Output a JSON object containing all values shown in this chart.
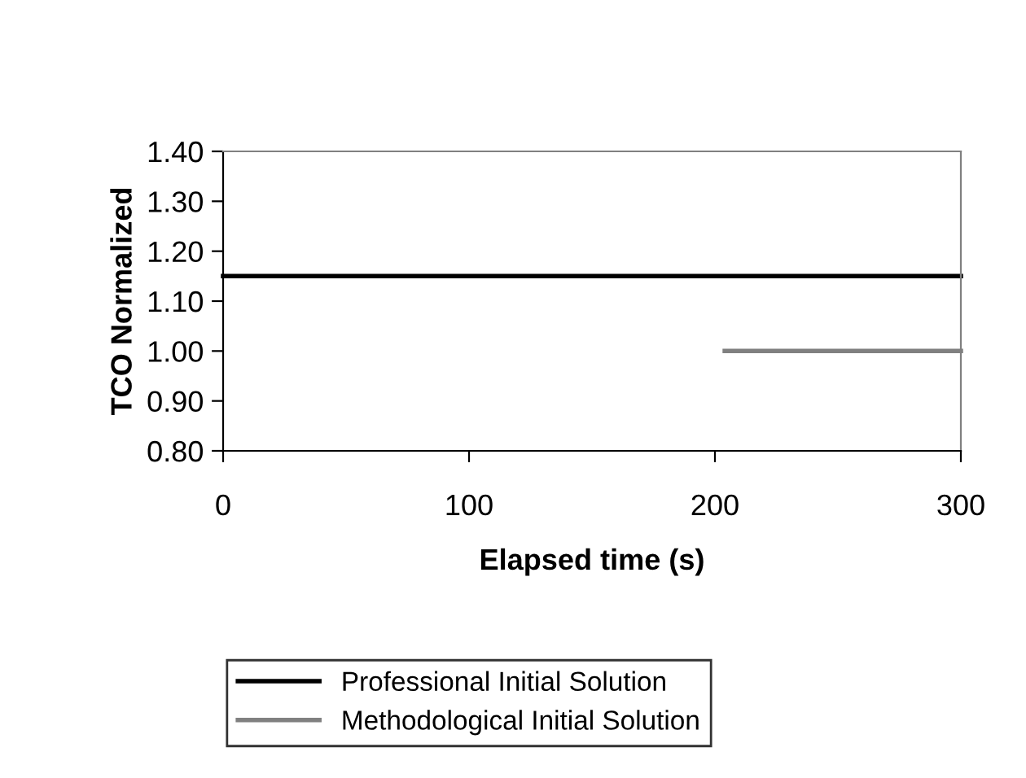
{
  "chart_data": {
    "type": "line",
    "xlabel": "Elapsed time (s)",
    "ylabel": "TCO Normalized",
    "series": [
      {
        "name": "Professional Initial Solution",
        "color": "#000000",
        "x": [
          0,
          300
        ],
        "values": [
          1.15,
          1.15
        ]
      },
      {
        "name": "Methodological Initial Solution",
        "color": "#808080",
        "x": [
          204,
          300
        ],
        "values": [
          1.0,
          1.0
        ]
      }
    ],
    "xlim": [
      0,
      300
    ],
    "xticks": [
      0,
      100,
      200,
      300
    ],
    "ylim": [
      0.8,
      1.4
    ],
    "yticks": [
      {
        "value": 0.8,
        "label": "0.80"
      },
      {
        "value": 0.9,
        "label": "0.90"
      },
      {
        "value": 1.0,
        "label": "1.00"
      },
      {
        "value": 1.1,
        "label": "1.10"
      },
      {
        "value": 1.2,
        "label": "1.20"
      },
      {
        "value": 1.3,
        "label": "1.30"
      },
      {
        "value": 1.4,
        "label": "1.40"
      }
    ],
    "grid": false,
    "legend": "bottom",
    "marker": "none",
    "line_style": "solid"
  }
}
